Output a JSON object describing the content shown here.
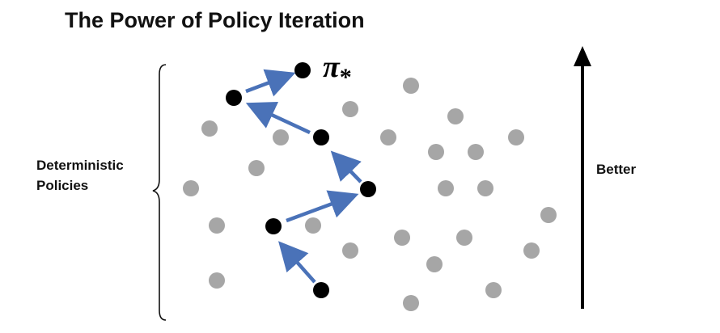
{
  "title": "The Power of Policy Iteration",
  "left_label": [
    "Deterministic",
    "Policies"
  ],
  "right_label": "Better",
  "optimal_label": "π",
  "optimal_subscript": "*",
  "colors": {
    "policy_dot": "#a6a6a6",
    "path_dot": "#000000",
    "path_arrow": "#4a72b8",
    "text": "#111111"
  }
}
